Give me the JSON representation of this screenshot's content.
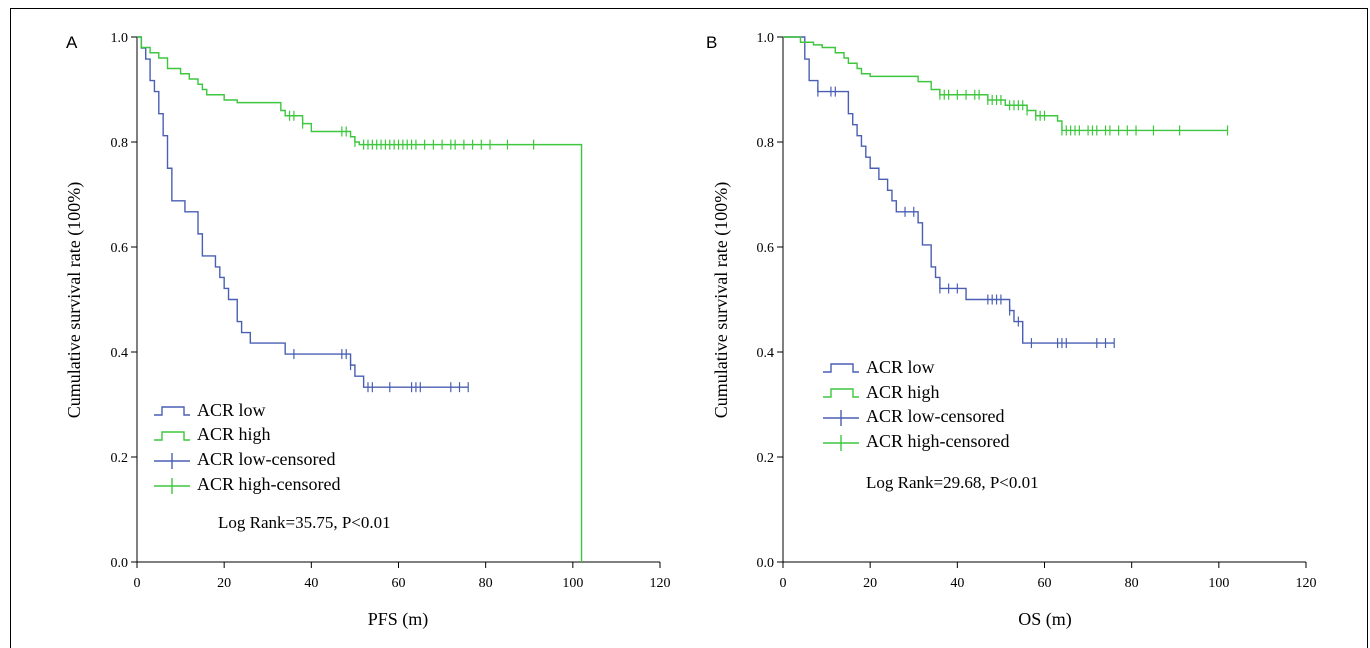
{
  "colors": {
    "low": "#4a5fb4",
    "high": "#3ec63e",
    "axis": "#000000"
  },
  "chart_data": [
    {
      "type": "line",
      "panel_label": "A",
      "xlabel": "PFS (m)",
      "ylabel": "Cumulative survival rate (100%)",
      "xlim": [
        0,
        120
      ],
      "ylim": [
        0,
        1
      ],
      "x_ticks": [
        "0",
        "20",
        "40",
        "60",
        "80",
        "100",
        "120"
      ],
      "y_ticks": [
        "0.0",
        "0.2",
        "0.4",
        "0.6",
        "0.8",
        "1.0"
      ],
      "grid": false,
      "legend": [
        {
          "label": "ACR low",
          "style": "step",
          "series": "low"
        },
        {
          "label": "ACR high",
          "style": "step",
          "series": "high"
        },
        {
          "label": "ACR low-censored",
          "style": "cross",
          "series": "low"
        },
        {
          "label": "ACR high-censored",
          "style": "cross",
          "series": "high"
        }
      ],
      "annotation": "Log Rank=35.75, P<0.01",
      "series": [
        {
          "key": "low",
          "steps": [
            [
              0,
              1.0
            ],
            [
              1,
              0.979
            ],
            [
              2,
              0.958
            ],
            [
              3,
              0.917
            ],
            [
              4,
              0.896
            ],
            [
              5,
              0.854
            ],
            [
              6,
              0.812
            ],
            [
              7,
              0.75
            ],
            [
              8,
              0.688
            ],
            [
              11,
              0.667
            ],
            [
              14,
              0.625
            ],
            [
              15,
              0.583
            ],
            [
              18,
              0.562
            ],
            [
              19,
              0.542
            ],
            [
              20,
              0.521
            ],
            [
              21,
              0.5
            ],
            [
              23,
              0.458
            ],
            [
              24,
              0.437
            ],
            [
              26,
              0.417
            ],
            [
              34,
              0.396
            ],
            [
              49,
              0.375
            ],
            [
              50,
              0.354
            ],
            [
              52,
              0.333
            ],
            [
              76,
              0.333
            ]
          ],
          "censored_x": [
            36,
            47,
            48,
            49,
            53,
            54,
            58,
            63,
            64,
            65,
            72,
            74,
            76
          ]
        },
        {
          "key": "high",
          "steps": [
            [
              0,
              1.0
            ],
            [
              1,
              0.98
            ],
            [
              3,
              0.97
            ],
            [
              5,
              0.96
            ],
            [
              7,
              0.94
            ],
            [
              10,
              0.93
            ],
            [
              12,
              0.92
            ],
            [
              14,
              0.91
            ],
            [
              15,
              0.9
            ],
            [
              16,
              0.89
            ],
            [
              20,
              0.88
            ],
            [
              23,
              0.875
            ],
            [
              33,
              0.86
            ],
            [
              34,
              0.85
            ],
            [
              38,
              0.835
            ],
            [
              40,
              0.82
            ],
            [
              49,
              0.81
            ],
            [
              50,
              0.8
            ],
            [
              51,
              0.795
            ],
            [
              102,
              0.795
            ],
            [
              102,
              0.0
            ]
          ],
          "censored_x": [
            35,
            36,
            38,
            47,
            48,
            50,
            52,
            53,
            54,
            55,
            56,
            57,
            58,
            59,
            60,
            61,
            62,
            63,
            64,
            66,
            68,
            70,
            72,
            73,
            75,
            77,
            79,
            81,
            85,
            91
          ]
        }
      ]
    },
    {
      "type": "line",
      "panel_label": "B",
      "xlabel": "OS (m)",
      "ylabel": "Cumulative survival rate (100%)",
      "xlim": [
        0,
        120
      ],
      "ylim": [
        0,
        1
      ],
      "x_ticks": [
        "0",
        "20",
        "40",
        "60",
        "80",
        "100",
        "120"
      ],
      "y_ticks": [
        "0.0",
        "0.2",
        "0.4",
        "0.6",
        "0.8",
        "1.0"
      ],
      "grid": false,
      "legend": [
        {
          "label": "ACR low",
          "style": "step",
          "series": "low"
        },
        {
          "label": "ACR high",
          "style": "step",
          "series": "high"
        },
        {
          "label": "ACR low-censored",
          "style": "cross",
          "series": "low"
        },
        {
          "label": "ACR high-censored",
          "style": "cross",
          "series": "high"
        }
      ],
      "annotation": "Log Rank=29.68, P<0.01",
      "series": [
        {
          "key": "low",
          "steps": [
            [
              0,
              1.0
            ],
            [
              5,
              0.958
            ],
            [
              6,
              0.917
            ],
            [
              8,
              0.896
            ],
            [
              15,
              0.854
            ],
            [
              16,
              0.833
            ],
            [
              17,
              0.812
            ],
            [
              18,
              0.792
            ],
            [
              19,
              0.771
            ],
            [
              20,
              0.75
            ],
            [
              22,
              0.729
            ],
            [
              24,
              0.708
            ],
            [
              25,
              0.688
            ],
            [
              26,
              0.667
            ],
            [
              31,
              0.646
            ],
            [
              32,
              0.604
            ],
            [
              34,
              0.562
            ],
            [
              35,
              0.542
            ],
            [
              36,
              0.521
            ],
            [
              42,
              0.5
            ],
            [
              52,
              0.479
            ],
            [
              53,
              0.458
            ],
            [
              55,
              0.417
            ],
            [
              76,
              0.417
            ]
          ],
          "censored_x": [
            8,
            11,
            12,
            28,
            30,
            36,
            38,
            40,
            47,
            48,
            49,
            50,
            52,
            54,
            57,
            63,
            64,
            65,
            72,
            74,
            76
          ]
        },
        {
          "key": "high",
          "steps": [
            [
              0,
              1.0
            ],
            [
              4,
              0.99
            ],
            [
              7,
              0.985
            ],
            [
              9,
              0.98
            ],
            [
              12,
              0.97
            ],
            [
              14,
              0.96
            ],
            [
              15,
              0.95
            ],
            [
              17,
              0.94
            ],
            [
              18,
              0.93
            ],
            [
              20,
              0.925
            ],
            [
              31,
              0.915
            ],
            [
              34,
              0.9
            ],
            [
              36,
              0.89
            ],
            [
              47,
              0.88
            ],
            [
              51,
              0.87
            ],
            [
              56,
              0.86
            ],
            [
              58,
              0.85
            ],
            [
              63,
              0.84
            ],
            [
              64,
              0.822
            ],
            [
              102,
              0.822
            ]
          ],
          "censored_x": [
            36,
            37,
            38,
            40,
            42,
            44,
            45,
            47,
            48,
            49,
            50,
            52,
            53,
            54,
            55,
            56,
            58,
            59,
            60,
            64,
            65,
            66,
            67,
            68,
            70,
            71,
            72,
            74,
            75,
            77,
            79,
            81,
            85,
            91,
            102
          ]
        }
      ]
    }
  ]
}
